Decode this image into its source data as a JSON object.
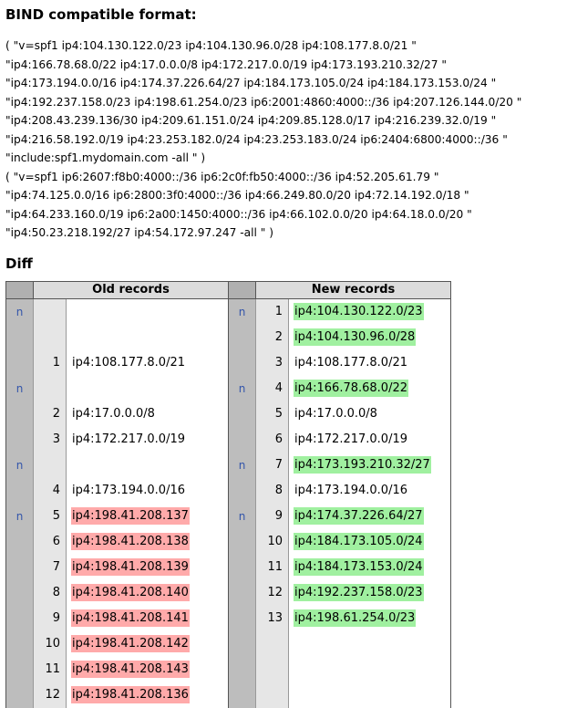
{
  "bind": {
    "title": "BIND compatible format:",
    "lines": [
      "( \"v=spf1 ip4:104.130.122.0/23 ip4:104.130.96.0/28 ip4:108.177.8.0/21 \"",
      "\"ip4:166.78.68.0/22 ip4:17.0.0.0/8 ip4:172.217.0.0/19 ip4:173.193.210.32/27 \"",
      "\"ip4:173.194.0.0/16 ip4:174.37.226.64/27 ip4:184.173.105.0/24 ip4:184.173.153.0/24 \"",
      "\"ip4:192.237.158.0/23 ip4:198.61.254.0/23 ip6:2001:4860:4000::/36 ip4:207.126.144.0/20 \"",
      "\"ip4:208.43.239.136/30 ip4:209.61.151.0/24 ip4:209.85.128.0/17 ip4:216.239.32.0/19 \"",
      "\"ip4:216.58.192.0/19 ip4:23.253.182.0/24 ip4:23.253.183.0/24 ip6:2404:6800:4000::/36 \"",
      "\"include:spf1.mydomain.com -all \" )",
      "( \"v=spf1 ip6:2607:f8b0:4000::/36 ip6:2c0f:fb50:4000::/36 ip4:52.205.61.79 \"",
      "\"ip4:74.125.0.0/16 ip6:2800:3f0:4000::/36 ip4:66.249.80.0/20 ip4:72.14.192.0/18 \"",
      "\"ip4:64.233.160.0/19 ip6:2a00:1450:4000::/36 ip4:66.102.0.0/20 ip4:64.18.0.0/20 \"",
      "\"ip4:50.23.218.192/27 ip4:54.172.97.247 -all \" )"
    ]
  },
  "diff": {
    "title": "Diff",
    "old_header": "Old records",
    "new_header": "New records",
    "colors": {
      "removed": "#ffaaaa",
      "added": "#a0f0a0",
      "flag": "#3355aa"
    },
    "rows": [
      {
        "old_flag": "n",
        "old_num": "",
        "old_val": "",
        "old_status": "",
        "new_flag": "n",
        "new_num": "1",
        "new_val": "ip4:104.130.122.0/23",
        "new_status": "added"
      },
      {
        "old_flag": "",
        "old_num": "",
        "old_val": "",
        "old_status": "",
        "new_flag": "",
        "new_num": "2",
        "new_val": "ip4:104.130.96.0/28",
        "new_status": "added"
      },
      {
        "old_flag": "",
        "old_num": "1",
        "old_val": "ip4:108.177.8.0/21",
        "old_status": "",
        "new_flag": "",
        "new_num": "3",
        "new_val": "ip4:108.177.8.0/21",
        "new_status": ""
      },
      {
        "old_flag": "n",
        "old_num": "",
        "old_val": "",
        "old_status": "",
        "new_flag": "n",
        "new_num": "4",
        "new_val": "ip4:166.78.68.0/22",
        "new_status": "added"
      },
      {
        "old_flag": "",
        "old_num": "2",
        "old_val": "ip4:17.0.0.0/8",
        "old_status": "",
        "new_flag": "",
        "new_num": "5",
        "new_val": "ip4:17.0.0.0/8",
        "new_status": ""
      },
      {
        "old_flag": "",
        "old_num": "3",
        "old_val": "ip4:172.217.0.0/19",
        "old_status": "",
        "new_flag": "",
        "new_num": "6",
        "new_val": "ip4:172.217.0.0/19",
        "new_status": ""
      },
      {
        "old_flag": "n",
        "old_num": "",
        "old_val": "",
        "old_status": "",
        "new_flag": "n",
        "new_num": "7",
        "new_val": "ip4:173.193.210.32/27",
        "new_status": "added"
      },
      {
        "old_flag": "",
        "old_num": "4",
        "old_val": "ip4:173.194.0.0/16",
        "old_status": "",
        "new_flag": "",
        "new_num": "8",
        "new_val": "ip4:173.194.0.0/16",
        "new_status": ""
      },
      {
        "old_flag": "n",
        "old_num": "5",
        "old_val": "ip4:198.41.208.137",
        "old_status": "removed",
        "new_flag": "n",
        "new_num": "9",
        "new_val": "ip4:174.37.226.64/27",
        "new_status": "added"
      },
      {
        "old_flag": "",
        "old_num": "6",
        "old_val": "ip4:198.41.208.138",
        "old_status": "removed",
        "new_flag": "",
        "new_num": "10",
        "new_val": "ip4:184.173.105.0/24",
        "new_status": "added"
      },
      {
        "old_flag": "",
        "old_num": "7",
        "old_val": "ip4:198.41.208.139",
        "old_status": "removed",
        "new_flag": "",
        "new_num": "11",
        "new_val": "ip4:184.173.153.0/24",
        "new_status": "added"
      },
      {
        "old_flag": "",
        "old_num": "8",
        "old_val": "ip4:198.41.208.140",
        "old_status": "removed",
        "new_flag": "",
        "new_num": "12",
        "new_val": "ip4:192.237.158.0/23",
        "new_status": "added"
      },
      {
        "old_flag": "",
        "old_num": "9",
        "old_val": "ip4:198.41.208.141",
        "old_status": "removed",
        "new_flag": "",
        "new_num": "13",
        "new_val": "ip4:198.61.254.0/23",
        "new_status": "added"
      },
      {
        "old_flag": "",
        "old_num": "10",
        "old_val": "ip4:198.41.208.142",
        "old_status": "removed",
        "new_flag": "",
        "new_num": "",
        "new_val": "",
        "new_status": ""
      },
      {
        "old_flag": "",
        "old_num": "11",
        "old_val": "ip4:198.41.208.143",
        "old_status": "removed",
        "new_flag": "",
        "new_num": "",
        "new_val": "",
        "new_status": ""
      },
      {
        "old_flag": "",
        "old_num": "12",
        "old_val": "ip4:198.41.208.136",
        "old_status": "removed",
        "new_flag": "",
        "new_num": "",
        "new_val": "",
        "new_status": ""
      }
    ]
  }
}
